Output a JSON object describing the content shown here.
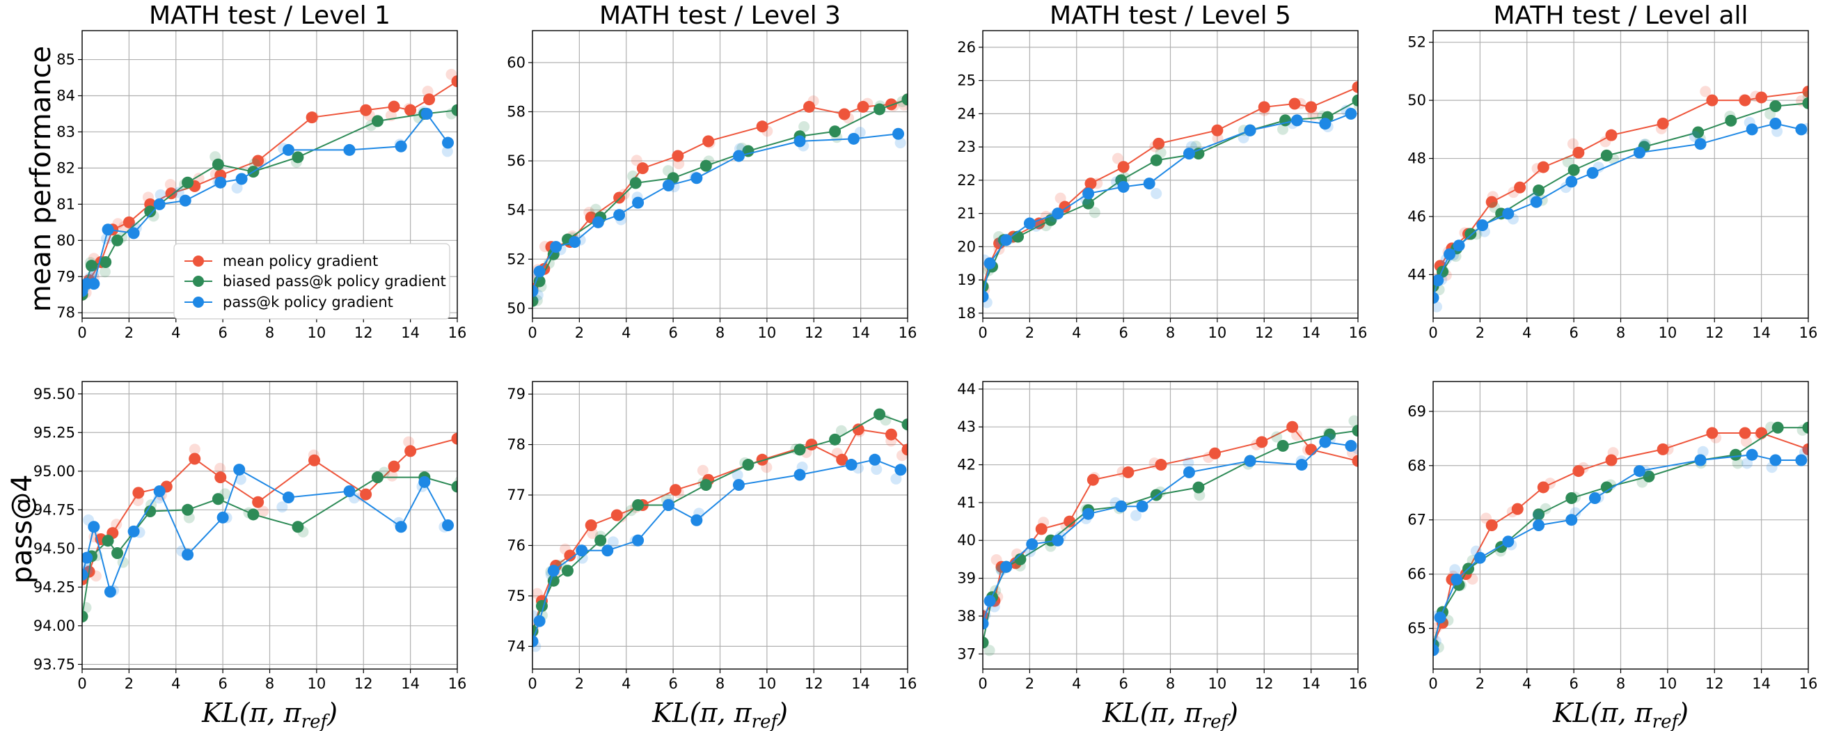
{
  "chart_data": {
    "type": "line",
    "series_names": [
      "mean policy gradient",
      "biased pass@k policy gradient",
      "pass@k policy gradient"
    ],
    "colors": [
      "#ee553b",
      "#2e8b57",
      "#1e88e5"
    ],
    "legend_position": "lower-right",
    "xlabel": "KL(π, π_ref)",
    "xlabel_main": "KL(π, π",
    "xlabel_sub": "ref",
    "xlabel_end": ")",
    "row_ylabels": [
      "mean performance",
      "pass@4"
    ],
    "xticks": [
      "0",
      "2",
      "4",
      "6",
      "8",
      "10",
      "12",
      "14",
      "16"
    ],
    "xlim": [
      0,
      16
    ],
    "panels": [
      {
        "title": "MATH test / Level 1",
        "ylim": [
          77.85,
          85.8
        ],
        "yticks": [
          78,
          79,
          80,
          81,
          82,
          83,
          84,
          85
        ],
        "ytick_labels": [
          "78",
          "79",
          "80",
          "81",
          "82",
          "83",
          "84",
          "85"
        ],
        "series": [
          {
            "x": [
              0,
              0.3,
              0.8,
              1.3,
              2.0,
              2.9,
              3.8,
              4.8,
              5.9,
              7.5,
              9.8,
              12.1,
              13.3,
              14.0,
              14.8,
              16.0
            ],
            "y": [
              78.5,
              78.9,
              79.4,
              80.3,
              80.5,
              81.0,
              81.3,
              81.5,
              81.8,
              82.2,
              83.4,
              83.6,
              83.7,
              83.6,
              83.9,
              84.4
            ]
          },
          {
            "x": [
              0,
              0.4,
              1.0,
              1.5,
              2.9,
              4.5,
              5.8,
              7.3,
              9.2,
              12.6,
              14.6,
              16.0
            ],
            "y": [
              78.5,
              79.3,
              79.4,
              80.0,
              80.8,
              81.6,
              82.1,
              81.9,
              82.3,
              83.3,
              83.5,
              83.6
            ]
          },
          {
            "x": [
              0,
              0.2,
              0.5,
              1.1,
              2.2,
              3.3,
              4.4,
              5.9,
              6.8,
              8.8,
              11.4,
              13.6,
              14.7,
              15.6
            ],
            "y": [
              78.6,
              78.8,
              78.8,
              80.3,
              80.2,
              81.0,
              81.1,
              81.6,
              81.7,
              82.5,
              82.5,
              82.6,
              83.5,
              82.7
            ]
          }
        ]
      },
      {
        "title": "MATH test / Level 3",
        "ylim": [
          49.6,
          61.3
        ],
        "yticks": [
          50,
          52,
          54,
          56,
          58,
          60
        ],
        "ytick_labels": [
          "50",
          "52",
          "54",
          "56",
          "58",
          "60"
        ],
        "series": [
          {
            "x": [
              0,
              0.5,
              0.8,
              1.6,
              2.5,
              3.7,
              4.7,
              6.2,
              7.5,
              9.8,
              11.8,
              13.3,
              14.1,
              15.3,
              16.0
            ],
            "y": [
              50.8,
              51.6,
              52.5,
              52.7,
              53.7,
              54.5,
              55.7,
              56.2,
              56.8,
              57.4,
              58.2,
              57.9,
              58.2,
              58.3,
              58.5
            ]
          },
          {
            "x": [
              0,
              0.3,
              0.9,
              1.5,
              2.9,
              4.4,
              6.0,
              7.4,
              9.2,
              11.4,
              12.9,
              14.8,
              16.0
            ],
            "y": [
              50.3,
              51.1,
              52.2,
              52.8,
              53.7,
              55.1,
              55.3,
              55.8,
              56.4,
              57.0,
              57.2,
              58.1,
              58.5
            ]
          },
          {
            "x": [
              0,
              0.3,
              1.0,
              1.8,
              2.8,
              3.7,
              4.5,
              5.8,
              7.0,
              8.8,
              11.4,
              13.7,
              15.6
            ],
            "y": [
              50.7,
              51.5,
              52.5,
              52.7,
              53.5,
              53.8,
              54.3,
              55.0,
              55.3,
              56.2,
              56.8,
              56.9,
              57.1
            ]
          }
        ]
      },
      {
        "title": "MATH test / Level 5",
        "ylim": [
          17.85,
          26.5
        ],
        "yticks": [
          18,
          19,
          20,
          21,
          22,
          23,
          24,
          25,
          26
        ],
        "ytick_labels": [
          "18",
          "19",
          "20",
          "21",
          "22",
          "23",
          "24",
          "25",
          "26"
        ],
        "series": [
          {
            "x": [
              0,
              0.3,
              0.7,
              1.3,
              2.4,
              3.5,
              4.6,
              6.0,
              7.5,
              10.0,
              12.0,
              13.3,
              14.0,
              16.0
            ],
            "y": [
              18.8,
              19.5,
              20.1,
              20.3,
              20.7,
              21.2,
              21.9,
              22.4,
              23.1,
              23.5,
              24.2,
              24.3,
              24.2,
              24.8
            ]
          },
          {
            "x": [
              0,
              0.4,
              0.9,
              1.5,
              2.9,
              4.5,
              5.9,
              7.4,
              9.2,
              11.4,
              12.9,
              14.7,
              16.0
            ],
            "y": [
              18.8,
              19.4,
              20.2,
              20.3,
              20.8,
              21.3,
              22.0,
              22.6,
              22.8,
              23.5,
              23.8,
              23.9,
              24.4
            ]
          },
          {
            "x": [
              0,
              0.3,
              1.0,
              2.0,
              3.2,
              4.5,
              6.0,
              7.1,
              8.8,
              11.4,
              13.4,
              14.6,
              15.7
            ],
            "y": [
              18.5,
              19.5,
              20.2,
              20.7,
              21.0,
              21.6,
              21.8,
              21.9,
              22.8,
              23.5,
              23.8,
              23.7,
              24.0
            ]
          }
        ]
      },
      {
        "title": "MATH test / Level all",
        "ylim": [
          42.5,
          52.4
        ],
        "yticks": [
          44,
          46,
          48,
          50,
          52
        ],
        "ytick_labels": [
          "44",
          "46",
          "48",
          "50",
          "52"
        ],
        "series": [
          {
            "x": [
              0,
              0.3,
              0.8,
              1.5,
              2.5,
              3.7,
              4.7,
              6.2,
              7.6,
              9.8,
              11.9,
              13.3,
              14.0,
              16.0
            ],
            "y": [
              43.6,
              44.3,
              44.9,
              45.4,
              46.5,
              47.0,
              47.7,
              48.2,
              48.8,
              49.2,
              50.0,
              50.0,
              50.1,
              50.3
            ]
          },
          {
            "x": [
              0,
              0.4,
              1.0,
              1.6,
              2.9,
              4.5,
              6.0,
              7.4,
              9.0,
              11.3,
              12.7,
              14.6,
              16.0
            ],
            "y": [
              43.6,
              44.1,
              44.9,
              45.4,
              46.1,
              46.9,
              47.6,
              48.1,
              48.4,
              48.9,
              49.3,
              49.8,
              49.9
            ]
          },
          {
            "x": [
              0,
              0.2,
              0.7,
              1.1,
              2.1,
              3.2,
              4.4,
              5.9,
              6.8,
              8.8,
              11.4,
              13.6,
              14.6,
              15.7
            ],
            "y": [
              43.2,
              43.8,
              44.7,
              45.0,
              45.7,
              46.1,
              46.5,
              47.2,
              47.5,
              48.2,
              48.5,
              49.0,
              49.2,
              49.0
            ]
          }
        ]
      },
      {
        "title": "",
        "ylim": [
          93.72,
          95.58
        ],
        "yticks": [
          93.75,
          94.0,
          94.25,
          94.5,
          94.75,
          95.0,
          95.25,
          95.5
        ],
        "ytick_labels": [
          "93.75",
          "94.00",
          "94.25",
          "94.50",
          "94.75",
          "95.00",
          "95.25",
          "95.50"
        ],
        "series": [
          {
            "x": [
              0,
              0.3,
              0.8,
              1.3,
              2.4,
              3.6,
              4.8,
              5.9,
              7.5,
              9.9,
              12.1,
              13.3,
              14.0,
              16.0
            ],
            "y": [
              94.3,
              94.35,
              94.56,
              94.6,
              94.86,
              94.9,
              95.08,
              94.96,
              94.8,
              95.07,
              94.85,
              95.03,
              95.13,
              95.21
            ]
          },
          {
            "x": [
              0,
              0.4,
              1.1,
              1.5,
              2.9,
              4.5,
              5.8,
              7.3,
              9.2,
              12.6,
              14.6,
              16.0
            ],
            "y": [
              94.06,
              94.45,
              94.55,
              94.47,
              94.74,
              94.75,
              94.82,
              94.72,
              94.64,
              94.96,
              94.96,
              94.9
            ]
          },
          {
            "x": [
              0,
              0.2,
              0.5,
              1.2,
              2.2,
              3.3,
              4.5,
              6.0,
              6.7,
              8.8,
              11.4,
              13.6,
              14.6,
              15.6
            ],
            "y": [
              94.33,
              94.44,
              94.64,
              94.22,
              94.61,
              94.87,
              94.46,
              94.7,
              95.01,
              94.83,
              94.87,
              94.64,
              94.93,
              94.65
            ]
          }
        ]
      },
      {
        "title": "",
        "ylim": [
          73.55,
          79.25
        ],
        "yticks": [
          74,
          75,
          76,
          77,
          78,
          79
        ],
        "ytick_labels": [
          "74",
          "75",
          "76",
          "77",
          "78",
          "79"
        ],
        "series": [
          {
            "x": [
              0,
              0.4,
              1.0,
              1.6,
              2.5,
              3.6,
              4.7,
              6.1,
              7.5,
              9.8,
              11.9,
              13.2,
              13.9,
              15.3,
              16.0
            ],
            "y": [
              74.3,
              74.9,
              75.6,
              75.8,
              76.4,
              76.6,
              76.8,
              77.1,
              77.3,
              77.7,
              78.0,
              77.7,
              78.3,
              78.2,
              77.9
            ]
          },
          {
            "x": [
              0,
              0.4,
              0.9,
              1.5,
              2.9,
              4.5,
              5.8,
              7.4,
              9.2,
              11.4,
              12.9,
              14.8,
              16.0
            ],
            "y": [
              74.3,
              74.8,
              75.3,
              75.5,
              76.1,
              76.8,
              76.8,
              77.2,
              77.6,
              77.9,
              78.1,
              78.6,
              78.4
            ]
          },
          {
            "x": [
              0,
              0.3,
              0.9,
              2.1,
              3.2,
              4.5,
              5.8,
              7.0,
              8.8,
              11.4,
              13.6,
              14.6,
              15.7
            ],
            "y": [
              74.1,
              74.5,
              75.5,
              75.9,
              75.9,
              76.1,
              76.8,
              76.5,
              77.2,
              77.4,
              77.6,
              77.7,
              77.5
            ]
          }
        ]
      },
      {
        "title": "",
        "ylim": [
          36.6,
          44.2
        ],
        "yticks": [
          37,
          38,
          39,
          40,
          41,
          42,
          43,
          44
        ],
        "ytick_labels": [
          "37",
          "38",
          "39",
          "40",
          "41",
          "42",
          "43",
          "44"
        ],
        "series": [
          {
            "x": [
              0,
              0.5,
              0.8,
              1.4,
              2.5,
              3.7,
              4.7,
              6.2,
              7.6,
              9.9,
              11.9,
              13.2,
              14.0,
              16.0
            ],
            "y": [
              38.0,
              38.4,
              39.3,
              39.4,
              40.3,
              40.5,
              41.6,
              41.8,
              42.0,
              42.3,
              42.6,
              43.0,
              42.4,
              42.1
            ]
          },
          {
            "x": [
              0,
              0.4,
              1.0,
              1.6,
              2.9,
              4.5,
              5.9,
              7.4,
              9.2,
              11.4,
              12.8,
              14.8,
              16.0
            ],
            "y": [
              37.3,
              38.5,
              39.3,
              39.5,
              40.0,
              40.8,
              40.9,
              41.2,
              41.4,
              42.1,
              42.5,
              42.8,
              42.9
            ]
          },
          {
            "x": [
              0,
              0.3,
              1.0,
              2.1,
              3.2,
              4.5,
              5.9,
              6.8,
              8.8,
              11.4,
              13.6,
              14.6,
              15.7
            ],
            "y": [
              37.8,
              38.4,
              39.3,
              39.9,
              40.0,
              40.7,
              40.9,
              40.9,
              41.8,
              42.1,
              42.0,
              42.6,
              42.5
            ]
          }
        ]
      },
      {
        "title": "",
        "ylim": [
          64.25,
          69.55
        ],
        "yticks": [
          65,
          66,
          67,
          68,
          69
        ],
        "ytick_labels": [
          "65",
          "66",
          "67",
          "68",
          "69"
        ],
        "series": [
          {
            "x": [
              0,
              0.4,
              0.8,
              1.4,
              2.5,
              3.6,
              4.7,
              6.2,
              7.6,
              9.8,
              11.9,
              13.3,
              14.0,
              16.0
            ],
            "y": [
              64.7,
              65.1,
              65.9,
              66.0,
              66.9,
              67.2,
              67.6,
              67.9,
              68.1,
              68.3,
              68.6,
              68.6,
              68.6,
              68.3
            ]
          },
          {
            "x": [
              0,
              0.4,
              1.1,
              1.5,
              2.9,
              4.5,
              5.9,
              7.4,
              9.2,
              11.4,
              12.9,
              14.7,
              16.0
            ],
            "y": [
              64.7,
              65.3,
              65.8,
              66.1,
              66.5,
              67.1,
              67.4,
              67.6,
              67.8,
              68.1,
              68.2,
              68.7,
              68.7
            ]
          },
          {
            "x": [
              0,
              0.3,
              1.0,
              2.0,
              3.2,
              4.5,
              5.9,
              6.9,
              8.8,
              11.4,
              13.6,
              14.6,
              15.7
            ],
            "y": [
              64.6,
              65.2,
              65.9,
              66.3,
              66.6,
              66.9,
              67.0,
              67.4,
              67.9,
              68.1,
              68.2,
              68.1,
              68.1
            ]
          }
        ]
      }
    ]
  }
}
